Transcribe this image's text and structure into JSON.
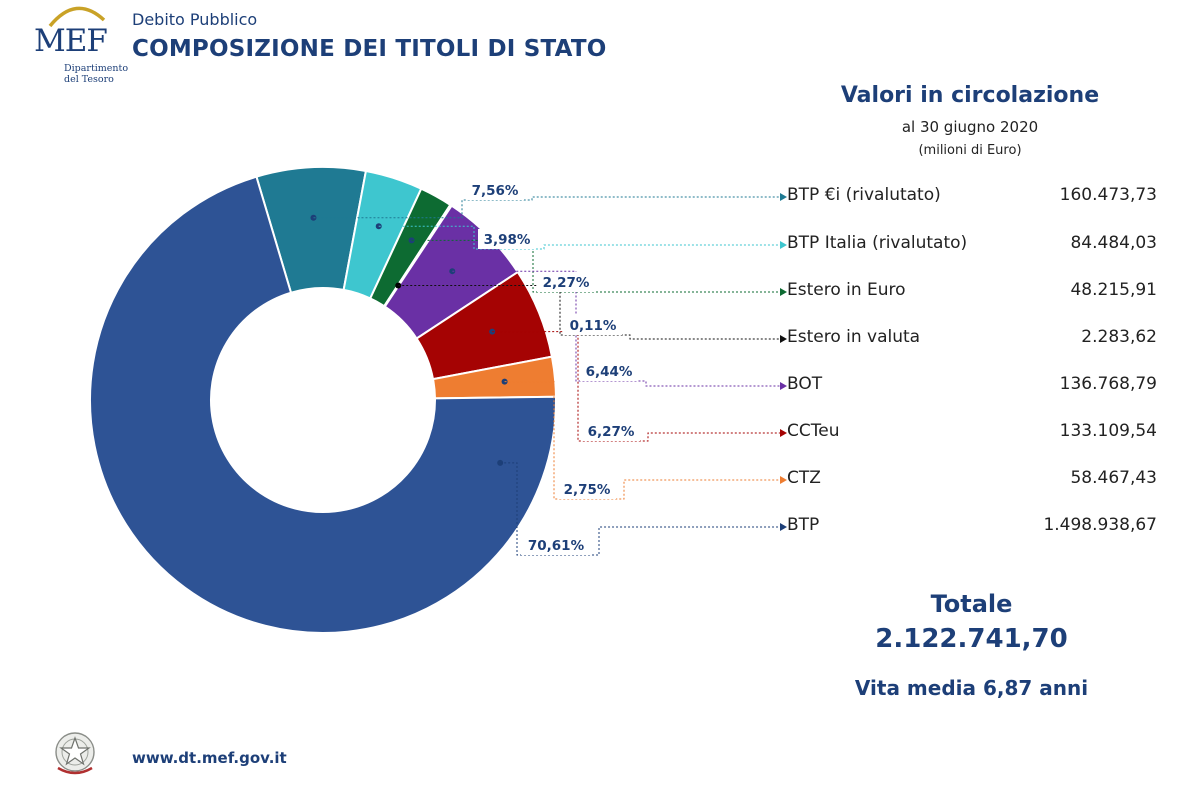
{
  "header": {
    "org_logo_text": "MEF",
    "org_sub_line1": "Dipartimento",
    "org_sub_line2": "del Tesoro",
    "supertitle": "Debito Pubblico",
    "title": "COMPOSIZIONE DEI TITOLI DI STATO"
  },
  "values_panel": {
    "title": "Valori in circolazione",
    "date": "al 30 giugno 2020",
    "unit": "(milioni di Euro)"
  },
  "totals": {
    "label": "Totale",
    "value": "2.122.741,70",
    "vita_media": "Vita media 6,87 anni"
  },
  "footer": {
    "website": "www.dt.mef.gov.it"
  },
  "chart_data": {
    "type": "pie",
    "donut": true,
    "legend_position": "right",
    "categories": [
      "BTP €i (rivalutato)",
      "BTP Italia (rivalutato)",
      "Estero in Euro",
      "Estero in valuta",
      "BOT",
      "CCTeu",
      "CTZ",
      "BTP"
    ],
    "values": [
      160473.73,
      84484.03,
      48215.91,
      2283.62,
      136768.79,
      133109.54,
      58467.43,
      1498938.67
    ],
    "value_labels": [
      "160.473,73",
      "84.484,03",
      "48.215,91",
      "2.283,62",
      "136.768,79",
      "133.109,54",
      "58.467,43",
      "1.498.938,67"
    ],
    "percentages": [
      7.56,
      3.98,
      2.27,
      0.11,
      6.44,
      6.27,
      2.75,
      70.61
    ],
    "percent_labels": [
      "7,56%",
      "3,98%",
      "2,27%",
      "0,11%",
      "6,44%",
      "6,27%",
      "2,75%",
      "70,61%"
    ],
    "colors": [
      "#1f7a93",
      "#3ec6cf",
      "#0d6b32",
      "#111111",
      "#6a30a5",
      "#a50303",
      "#ee7d31",
      "#2e5395"
    ]
  }
}
